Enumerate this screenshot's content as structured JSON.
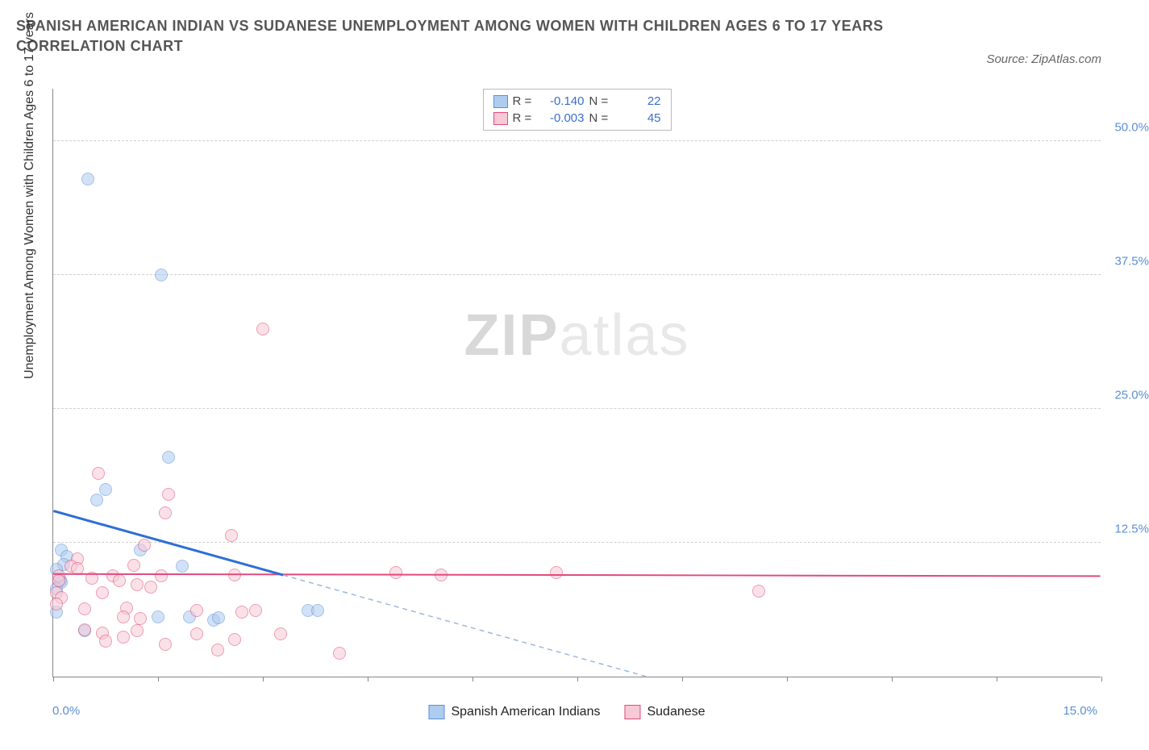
{
  "title": "SPANISH AMERICAN INDIAN VS SUDANESE UNEMPLOYMENT AMONG WOMEN WITH CHILDREN AGES 6 TO 17 YEARS CORRELATION CHART",
  "source": "Source: ZipAtlas.com",
  "watermark_a": "ZIP",
  "watermark_b": "atlas",
  "chart": {
    "type": "scatter",
    "background_color": "#ffffff",
    "grid_color": "#d0d0d0",
    "axis_color": "#888888",
    "y_axis_title": "Unemployment Among Women with Children Ages 6 to 17 years",
    "y_axis_title_fontsize": 16,
    "xlim": [
      0,
      15
    ],
    "ylim": [
      0,
      55
    ],
    "xtick_label_left": "0.0%",
    "xtick_label_right": "15.0%",
    "ytick_labels": [
      "50.0%",
      "37.5%",
      "25.0%",
      "12.5%"
    ],
    "ytick_values": [
      50,
      37.5,
      25,
      12.5
    ],
    "ytick_color": "#5b8fd6",
    "xtick_positions": [
      0,
      1.5,
      3.0,
      4.5,
      6.0,
      7.5,
      9.0,
      10.5,
      12.0,
      13.5,
      15.0
    ],
    "marker_radius": 8,
    "marker_opacity": 0.55,
    "series": [
      {
        "id": "spanish_american_indians",
        "label": "Spanish American Indians",
        "fill_color": "#aeccf0",
        "stroke_color": "#5b8fd6",
        "line_color": "#2e6fd6",
        "line_width": 3,
        "line_dash_extension_color": "#9ab8e0",
        "reg_line": {
          "x1": 0,
          "y1": 15.5,
          "x2": 8.5,
          "y2": 0,
          "extend_dashed_to_x": 8.5
        },
        "r_value": "-0.140",
        "n_value": "22",
        "points": [
          {
            "x": 0.5,
            "y": 46.5
          },
          {
            "x": 1.55,
            "y": 37.5
          },
          {
            "x": 1.65,
            "y": 20.5
          },
          {
            "x": 0.75,
            "y": 17.5
          },
          {
            "x": 0.62,
            "y": 16.5
          },
          {
            "x": 0.12,
            "y": 11.8
          },
          {
            "x": 0.2,
            "y": 11.2
          },
          {
            "x": 1.25,
            "y": 11.8
          },
          {
            "x": 0.15,
            "y": 10.5
          },
          {
            "x": 0.05,
            "y": 10.0
          },
          {
            "x": 1.85,
            "y": 10.3
          },
          {
            "x": 0.1,
            "y": 9.0
          },
          {
            "x": 0.12,
            "y": 8.8
          },
          {
            "x": 0.05,
            "y": 8.2
          },
          {
            "x": 1.5,
            "y": 5.6
          },
          {
            "x": 1.95,
            "y": 5.6
          },
          {
            "x": 2.3,
            "y": 5.3
          },
          {
            "x": 2.36,
            "y": 5.5
          },
          {
            "x": 3.65,
            "y": 6.2
          },
          {
            "x": 3.78,
            "y": 6.2
          },
          {
            "x": 0.45,
            "y": 4.3
          },
          {
            "x": 0.05,
            "y": 6.0
          }
        ]
      },
      {
        "id": "sudanese",
        "label": "Sudanese",
        "fill_color": "#f7c9d6",
        "stroke_color": "#e24a7a",
        "line_color": "#e24a7a",
        "line_width": 2,
        "reg_line": {
          "x1": 0,
          "y1": 9.6,
          "x2": 15,
          "y2": 9.4
        },
        "r_value": "-0.003",
        "n_value": "45",
        "points": [
          {
            "x": 3.0,
            "y": 32.5
          },
          {
            "x": 0.65,
            "y": 19.0
          },
          {
            "x": 1.65,
            "y": 17.0
          },
          {
            "x": 1.6,
            "y": 15.3
          },
          {
            "x": 2.55,
            "y": 13.2
          },
          {
            "x": 1.3,
            "y": 12.3
          },
          {
            "x": 0.35,
            "y": 11.0
          },
          {
            "x": 0.25,
            "y": 10.3
          },
          {
            "x": 0.35,
            "y": 10.1
          },
          {
            "x": 0.08,
            "y": 9.4
          },
          {
            "x": 0.08,
            "y": 9.0
          },
          {
            "x": 0.55,
            "y": 9.2
          },
          {
            "x": 0.85,
            "y": 9.4
          },
          {
            "x": 0.95,
            "y": 9.0
          },
          {
            "x": 1.2,
            "y": 8.6
          },
          {
            "x": 1.4,
            "y": 8.4
          },
          {
            "x": 1.55,
            "y": 9.4
          },
          {
            "x": 1.15,
            "y": 10.4
          },
          {
            "x": 2.6,
            "y": 9.5
          },
          {
            "x": 0.05,
            "y": 7.8
          },
          {
            "x": 0.12,
            "y": 7.4
          },
          {
            "x": 0.7,
            "y": 7.8
          },
          {
            "x": 0.05,
            "y": 6.8
          },
          {
            "x": 0.45,
            "y": 6.3
          },
          {
            "x": 1.05,
            "y": 6.4
          },
          {
            "x": 1.0,
            "y": 5.6
          },
          {
            "x": 1.25,
            "y": 5.4
          },
          {
            "x": 2.05,
            "y": 6.2
          },
          {
            "x": 2.7,
            "y": 6.0
          },
          {
            "x": 2.9,
            "y": 6.2
          },
          {
            "x": 0.45,
            "y": 4.4
          },
          {
            "x": 0.7,
            "y": 4.1
          },
          {
            "x": 0.75,
            "y": 3.3
          },
          {
            "x": 1.0,
            "y": 3.7
          },
          {
            "x": 1.2,
            "y": 4.3
          },
          {
            "x": 1.6,
            "y": 3.0
          },
          {
            "x": 2.05,
            "y": 4.0
          },
          {
            "x": 2.35,
            "y": 2.5
          },
          {
            "x": 2.6,
            "y": 3.5
          },
          {
            "x": 3.25,
            "y": 4.0
          },
          {
            "x": 4.1,
            "y": 2.2
          },
          {
            "x": 4.9,
            "y": 9.7
          },
          {
            "x": 5.55,
            "y": 9.5
          },
          {
            "x": 7.2,
            "y": 9.7
          },
          {
            "x": 10.1,
            "y": 8.0
          }
        ]
      }
    ]
  },
  "legend_top_labels": {
    "r": "R =",
    "n": "N ="
  },
  "legend_bottom": [
    {
      "label": "Spanish American Indians",
      "fill": "#aeccf0",
      "stroke": "#5b8fd6"
    },
    {
      "label": "Sudanese",
      "fill": "#f7c9d6",
      "stroke": "#e24a7a"
    }
  ]
}
